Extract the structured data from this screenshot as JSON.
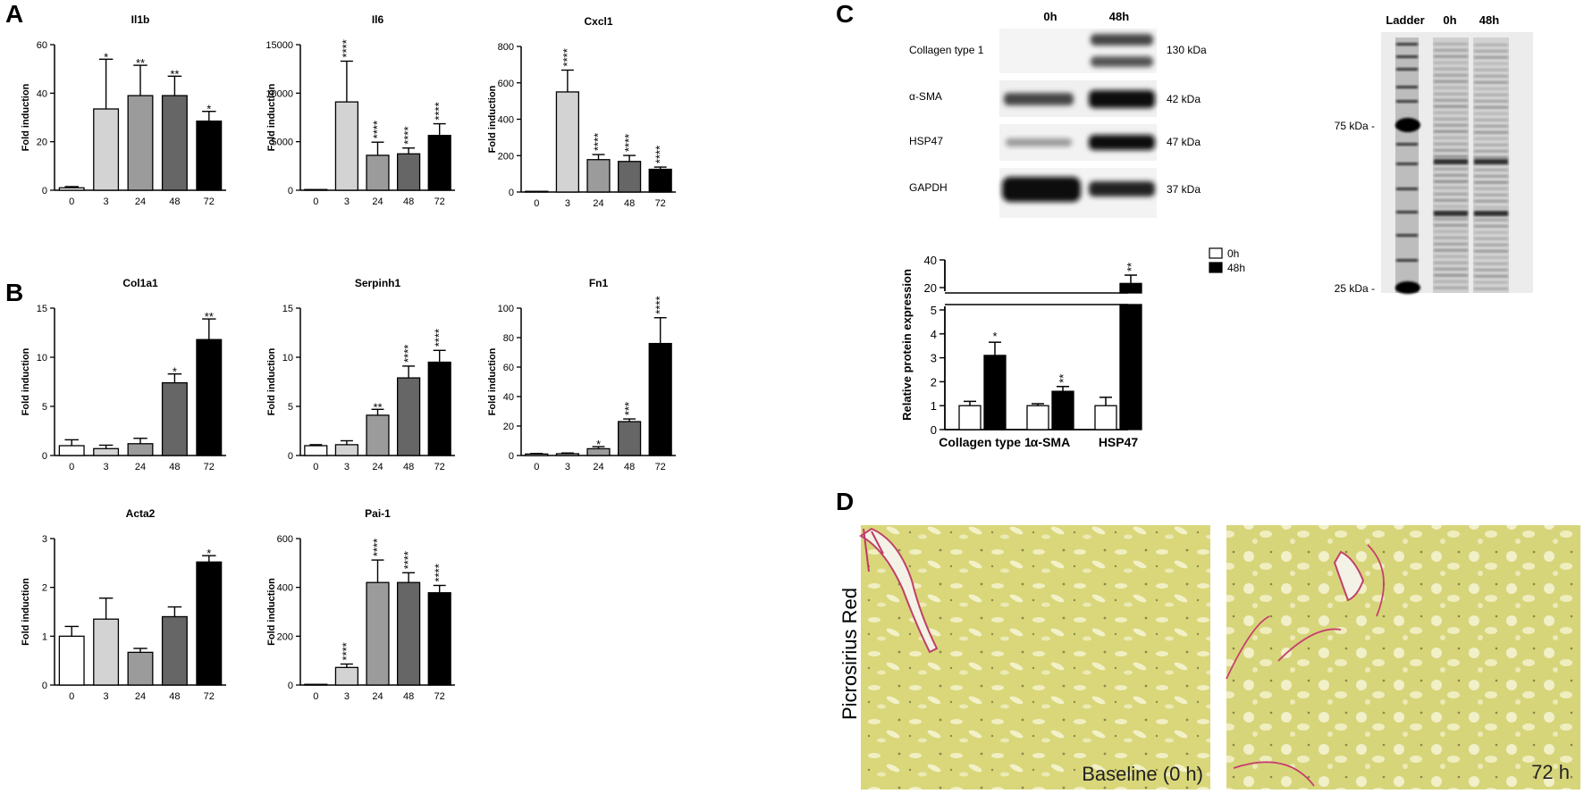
{
  "panels": {
    "A": "A",
    "B": "B",
    "C": "C",
    "D": "D"
  },
  "chart_data": [
    {
      "type": "bar",
      "title": "Il1b",
      "ylabel": "Fold induction",
      "categories": [
        "0",
        "3",
        "24",
        "48",
        "72"
      ],
      "values": [
        1,
        33.5,
        39,
        39,
        28.5
      ],
      "errors": [
        0.5,
        20.5,
        12.5,
        8,
        4
      ],
      "stars": [
        "",
        "*",
        "**",
        "**",
        "*"
      ],
      "ylim": [
        0,
        60
      ],
      "yticks": [
        0,
        20,
        40,
        60
      ],
      "yticklabels": [
        "0",
        "20",
        "40",
        "60"
      ]
    },
    {
      "type": "bar",
      "title": "Il6",
      "ylabel": "Fold induction",
      "categories": [
        "0",
        "3",
        "24",
        "48",
        "72"
      ],
      "values": [
        1,
        9100,
        3600,
        3750,
        5650
      ],
      "errors": [
        0,
        4200,
        1350,
        600,
        1200
      ],
      "stars": [
        "",
        "****",
        "****",
        "****",
        "****"
      ],
      "ylim": [
        0,
        15000
      ],
      "yticks": [
        0,
        5000,
        10000,
        15000
      ],
      "yticklabels": [
        "0",
        "5000",
        "10000",
        "15000"
      ]
    },
    {
      "type": "bar",
      "title": "Cxcl1",
      "ylabel": "Fold induction",
      "categories": [
        "0",
        "3",
        "24",
        "48",
        "72"
      ],
      "values": [
        1,
        550,
        178,
        168,
        125
      ],
      "errors": [
        0,
        120,
        28,
        33,
        12
      ],
      "stars": [
        "",
        "****",
        "****",
        "****",
        "****"
      ],
      "ylim": [
        0,
        800
      ],
      "yticks": [
        0,
        200,
        400,
        600,
        800
      ],
      "yticklabels": [
        "0",
        "200",
        "400",
        "600",
        "800"
      ]
    },
    {
      "type": "bar",
      "title": "Col1a1",
      "ylabel": "Fold induction",
      "categories": [
        "0",
        "3",
        "24",
        "48",
        "72"
      ],
      "values": [
        1,
        0.7,
        1.2,
        7.4,
        11.8
      ],
      "errors": [
        0.6,
        0.35,
        0.55,
        0.9,
        2.1
      ],
      "stars": [
        "",
        "",
        "",
        "*",
        "**"
      ],
      "ylim": [
        0,
        15
      ],
      "yticks": [
        0,
        5,
        10,
        15
      ],
      "yticklabels": [
        "0",
        "5",
        "10",
        "15"
      ]
    },
    {
      "type": "bar",
      "title": "Serpinh1",
      "ylabel": "Fold induction",
      "categories": [
        "0",
        "3",
        "24",
        "48",
        "72"
      ],
      "values": [
        1,
        1.1,
        4.1,
        7.9,
        9.5
      ],
      "errors": [
        0.1,
        0.4,
        0.6,
        1.2,
        1.2
      ],
      "stars": [
        "",
        "",
        "**",
        "****",
        "****"
      ],
      "ylim": [
        0,
        15
      ],
      "yticks": [
        0,
        5,
        10,
        15
      ],
      "yticklabels": [
        "0",
        "5",
        "10",
        "15"
      ]
    },
    {
      "type": "bar",
      "title": "Fn1",
      "ylabel": "Fold induction",
      "categories": [
        "0",
        "3",
        "24",
        "48",
        "72"
      ],
      "values": [
        1,
        1.2,
        4.6,
        23,
        76
      ],
      "errors": [
        0.4,
        0.5,
        1.4,
        1.8,
        17.5
      ],
      "stars": [
        "",
        "",
        "*",
        "***",
        "****"
      ],
      "ylim": [
        0,
        100
      ],
      "yticks": [
        0,
        20,
        40,
        60,
        80,
        100
      ],
      "yticklabels": [
        "0",
        "20",
        "40",
        "60",
        "80",
        "100"
      ]
    },
    {
      "type": "bar",
      "title": "Acta2",
      "ylabel": "Fold induction",
      "categories": [
        "0",
        "3",
        "24",
        "48",
        "72"
      ],
      "values": [
        1,
        1.35,
        0.67,
        1.4,
        2.52
      ],
      "errors": [
        0.2,
        0.43,
        0.08,
        0.2,
        0.13
      ],
      "stars": [
        "",
        "",
        "",
        "",
        "*"
      ],
      "ylim": [
        0,
        3
      ],
      "yticks": [
        0,
        1,
        2,
        3
      ],
      "yticklabels": [
        "0",
        "1",
        "2",
        "3"
      ]
    },
    {
      "type": "bar",
      "title": "Pai-1",
      "ylabel": "Fold induction",
      "categories": [
        "0",
        "3",
        "24",
        "48",
        "72"
      ],
      "values": [
        1,
        72,
        420,
        420,
        378
      ],
      "errors": [
        0,
        14,
        92,
        40,
        30
      ],
      "stars": [
        "",
        "****",
        "****",
        "****",
        "****"
      ],
      "ylim": [
        0,
        600
      ],
      "yticks": [
        0,
        200,
        400,
        600
      ],
      "yticklabels": [
        "0",
        "200",
        "400",
        "600"
      ]
    },
    {
      "type": "bar",
      "title": "",
      "ylabel": "Relative protein expression",
      "categories": [
        "Collagen type 1",
        "α-SMA",
        "HSP47"
      ],
      "series": [
        {
          "name": "0h",
          "values": [
            1,
            1,
            1
          ],
          "errors": [
            0.18,
            0.08,
            0.35
          ],
          "stars": [
            "",
            "",
            ""
          ]
        },
        {
          "name": "48h",
          "values": [
            3.1,
            1.6,
            23
          ],
          "errors": [
            0.55,
            0.2,
            6
          ],
          "stars": [
            "*",
            "**",
            "**"
          ]
        }
      ],
      "ylim_lower": [
        0,
        5
      ],
      "ylim_upper": [
        20,
        40
      ],
      "yticks_lower": [
        0,
        1,
        2,
        3,
        4,
        5
      ],
      "yticklabels_lower": [
        "0",
        "1",
        "2",
        "3",
        "4",
        "5"
      ],
      "yticks_upper": [
        20,
        40
      ],
      "yticklabels_upper": [
        "20",
        "40"
      ],
      "legend": "top-right"
    }
  ],
  "series_colors": [
    "#ffffff",
    "#d3d3d3",
    "#9b9b9b",
    "#666666",
    "#000000"
  ],
  "blot": {
    "headers": [
      "0h",
      "48h"
    ],
    "rows": [
      {
        "label": "Collagen type 1",
        "kda": "130 kDa"
      },
      {
        "label": "α-SMA",
        "kda": "42 kDa"
      },
      {
        "label": "HSP47",
        "kda": "47 kDa"
      },
      {
        "label": "GAPDH",
        "kda": "37 kDa"
      }
    ]
  },
  "gel": {
    "headers": [
      "Ladder",
      "0h",
      "48h"
    ],
    "markers": [
      "75 kDa -",
      "25 kDa -"
    ]
  },
  "micro": {
    "side_label": "Picrosirius Red",
    "captions": [
      "Baseline (0 h)",
      "72 h"
    ]
  }
}
